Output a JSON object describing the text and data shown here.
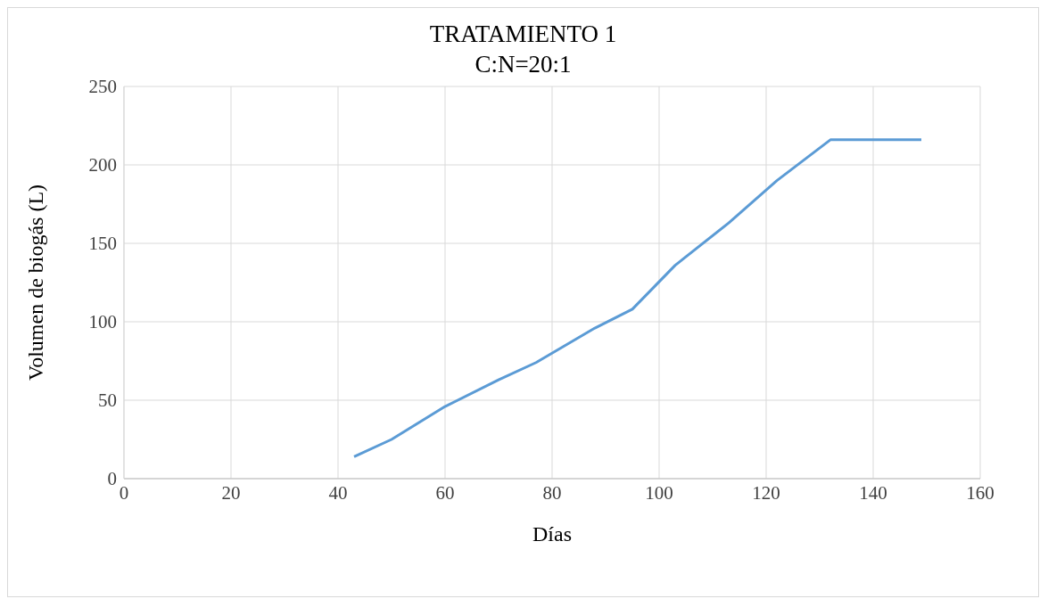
{
  "chart_data": {
    "type": "line",
    "title": "TRATAMIENTO  1",
    "subtitle": "C:N=20:1",
    "xlabel": "Días",
    "ylabel": "Volumen de biogás (L)",
    "x": [
      43,
      50,
      60,
      70,
      77,
      88,
      95,
      103,
      113,
      122,
      132,
      149
    ],
    "series": [
      {
        "color": "#5b9bd5",
        "values": [
          14,
          25,
          46,
          63,
          74,
          96,
          108,
          136,
          163,
          190,
          216,
          216
        ]
      }
    ],
    "xlim": [
      0,
      160
    ],
    "xticks": [
      0,
      20,
      40,
      60,
      80,
      100,
      120,
      140,
      160
    ],
    "ylim": [
      0,
      250
    ],
    "yticks": [
      0,
      50,
      100,
      150,
      200,
      250
    ],
    "grid": true,
    "legend": false,
    "marker": "none",
    "line_style": "solid"
  }
}
